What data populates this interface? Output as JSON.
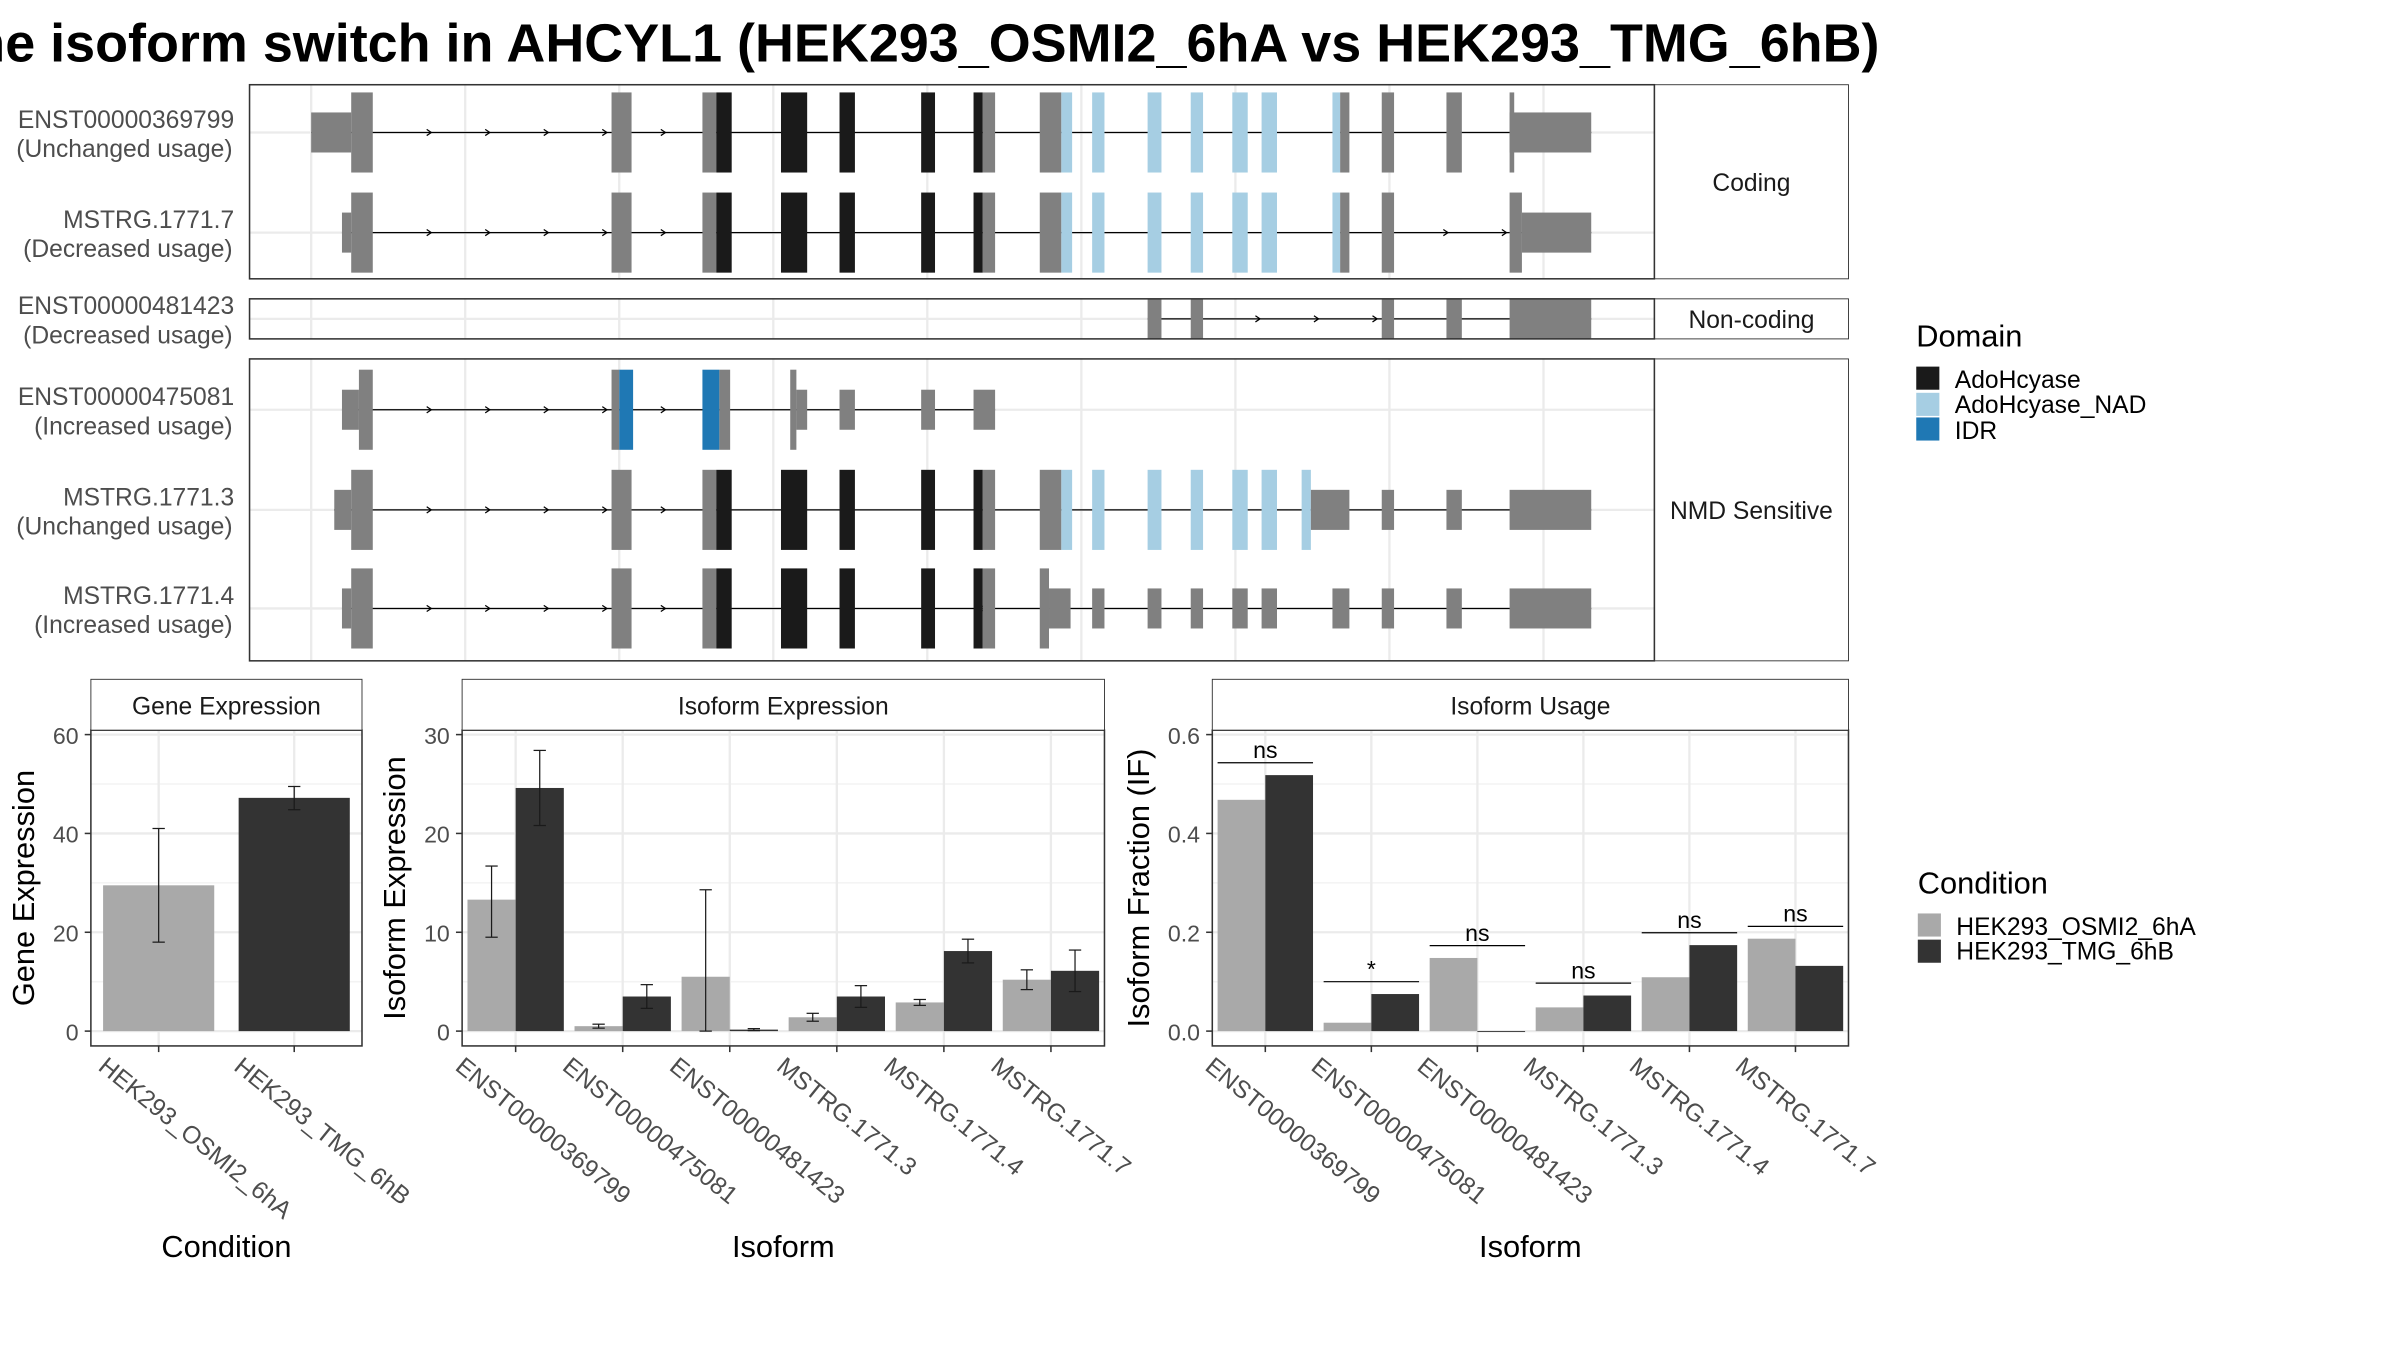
{
  "title": "he isoform switch in AHCYL1 (HEK293_OSMI2_6hA vs HEK293_TMG_6hB)",
  "colors": {
    "exon": "#808080",
    "AdoHcyase": "#1a1a1a",
    "AdoHcyase_NAD": "#a6cee3",
    "IDR": "#1f78b4",
    "cond_a": "#a9a9a9",
    "cond_b": "#333333",
    "grid": "#ebebeb",
    "strip": "#ffffff"
  },
  "isoform_panel": {
    "groups": [
      {
        "label": "Coding",
        "transcripts": [
          {
            "name": "ENST00000369799",
            "usage": "(Unchanged usage)"
          },
          {
            "name": "MSTRG.1771.7",
            "usage": "(Decreased usage)"
          }
        ]
      },
      {
        "label": "Non-coding",
        "transcripts": [
          {
            "name": "ENST00000481423",
            "usage": "(Decreased usage)"
          }
        ]
      },
      {
        "label": "NMD Sensitive",
        "transcripts": [
          {
            "name": "ENST00000475081",
            "usage": "(Increased usage)"
          },
          {
            "name": "MSTRG.1771.3",
            "usage": "(Unchanged usage)"
          },
          {
            "name": "MSTRG.1771.4",
            "usage": "(Increased usage)"
          }
        ]
      }
    ]
  },
  "legend_domain": {
    "title": "Domain",
    "items": [
      {
        "label": "AdoHcyase",
        "color": "#1a1a1a"
      },
      {
        "label": "AdoHcyase_NAD",
        "color": "#a6cee3"
      },
      {
        "label": "IDR",
        "color": "#1f78b4"
      }
    ]
  },
  "legend_condition": {
    "title": "Condition",
    "items": [
      {
        "label": "HEK293_OSMI2_6hA",
        "color": "#a9a9a9"
      },
      {
        "label": "HEK293_TMG_6hB",
        "color": "#333333"
      }
    ]
  },
  "chart_data": [
    {
      "type": "bar",
      "title": "Gene Expression",
      "xlabel": "Condition",
      "ylabel": "Gene Expression",
      "ylim": [
        0,
        60
      ],
      "yticks": [
        0,
        20,
        40,
        60
      ],
      "categories": [
        "HEK293_OSMI2_6hA",
        "HEK293_TMG_6hB"
      ],
      "values": [
        29.5,
        47.2
      ],
      "error": [
        [
          18,
          41
        ],
        [
          44.8,
          49.5
        ]
      ]
    },
    {
      "type": "bar",
      "title": "Isoform Expression",
      "xlabel": "Isoform",
      "ylabel": "Isoform Expression",
      "ylim": [
        0,
        30
      ],
      "yticks": [
        0,
        10,
        20,
        30
      ],
      "categories": [
        "ENST00000369799",
        "ENST00000475081",
        "ENST00000481423",
        "MSTRG.1771.3",
        "MSTRG.1771.4",
        "MSTRG.1771.7"
      ],
      "series": [
        {
          "name": "HEK293_OSMI2_6hA",
          "values": [
            13.3,
            0.5,
            5.5,
            1.4,
            2.9,
            5.2
          ],
          "error": [
            [
              9.5,
              16.7
            ],
            [
              0.3,
              0.7
            ],
            [
              0,
              14.3
            ],
            [
              1.0,
              1.8
            ],
            [
              2.6,
              3.2
            ],
            [
              4.2,
              6.2
            ]
          ]
        },
        {
          "name": "HEK293_TMG_6hB",
          "values": [
            24.6,
            3.5,
            0.15,
            3.5,
            8.1,
            6.1
          ],
          "error": [
            [
              20.8,
              28.4
            ],
            [
              2.3,
              4.7
            ],
            [
              0.05,
              0.25
            ],
            [
              2.4,
              4.6
            ],
            [
              6.9,
              9.3
            ],
            [
              4.0,
              8.2
            ]
          ]
        }
      ]
    },
    {
      "type": "bar",
      "title": "Isoform Usage",
      "xlabel": "Isoform",
      "ylabel": "Isoform Fraction (IF)",
      "ylim": [
        0,
        0.6
      ],
      "yticks": [
        "0.0",
        "0.2",
        "0.4",
        "0.6"
      ],
      "categories": [
        "ENST00000369799",
        "ENST00000475081",
        "ENST00000481423",
        "MSTRG.1771.3",
        "MSTRG.1771.4",
        "MSTRG.1771.7"
      ],
      "series": [
        {
          "name": "HEK293_OSMI2_6hA",
          "values": [
            0.468,
            0.017,
            0.148,
            0.048,
            0.109,
            0.187
          ]
        },
        {
          "name": "HEK293_TMG_6hB",
          "values": [
            0.518,
            0.075,
            0.0,
            0.072,
            0.174,
            0.132
          ]
        }
      ],
      "significance": [
        "ns",
        "*",
        "ns",
        "ns",
        "ns",
        "ns"
      ]
    }
  ]
}
